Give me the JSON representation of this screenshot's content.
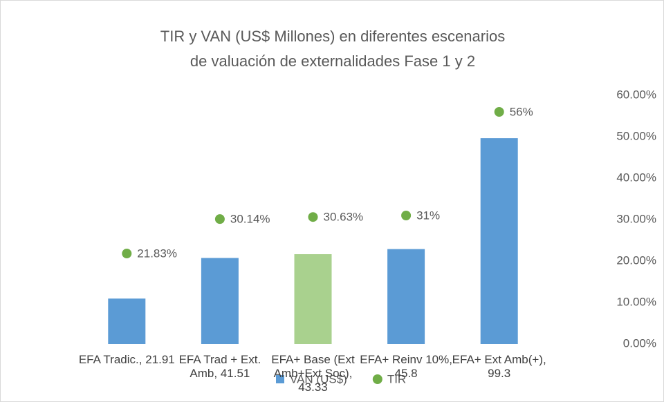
{
  "chart_data": {
    "type": "bar_dot",
    "title": "TIR y VAN (US$ Millones) en diferentes escenarios de valuación de externalidades Fase 1 y 2",
    "ylim": [
      0,
      120
    ],
    "y2lim": [
      0,
      60
    ],
    "y2ticks": [
      {
        "value": 0,
        "label": "0.00%"
      },
      {
        "value": 10,
        "label": "10.00%"
      },
      {
        "value": 20,
        "label": "20.00%"
      },
      {
        "value": 30,
        "label": "30.00%"
      },
      {
        "value": 40,
        "label": "40.00%"
      },
      {
        "value": 50,
        "label": "50.00%"
      },
      {
        "value": 60,
        "label": "60.00%"
      }
    ],
    "legend": "bottom",
    "series": [
      {
        "name": "VAN (US$)",
        "color": "#5b9bd5",
        "point_colors": [
          "#5b9bd5",
          "#5b9bd5",
          "#a9d18e",
          "#5b9bd5",
          "#5b9bd5"
        ],
        "values": [
          21.91,
          41.51,
          43.33,
          45.8,
          99.3
        ],
        "value_labels": [
          "EFA Tradic., 21.91",
          "EFA Trad + Ext. Amb, 41.51",
          "EFA+ Base (Ext Amb+Ext Soc), 43.33",
          "EFA+ Reinv 10%, 45.8",
          "EFA+ Ext Amb(+), 99.3"
        ]
      },
      {
        "name": "TIR",
        "color": "#70ad47",
        "axis": "y2",
        "values": [
          21.83,
          30.14,
          30.63,
          31,
          56
        ],
        "value_labels": [
          "21.83%",
          "30.14%",
          "30.63%",
          "31%",
          "56%"
        ]
      }
    ]
  }
}
